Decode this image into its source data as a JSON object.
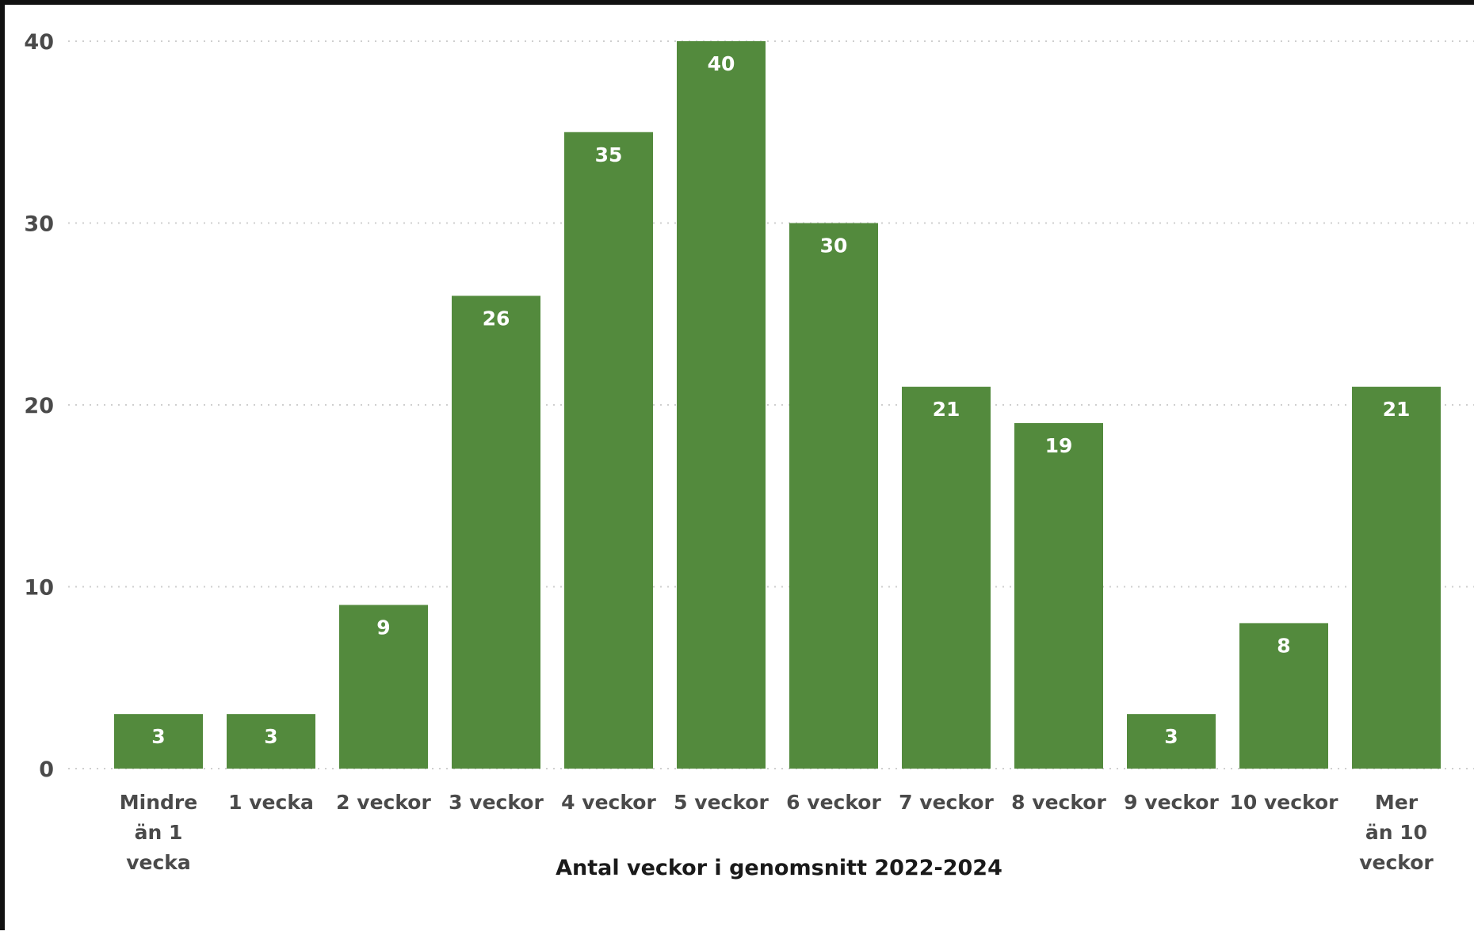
{
  "chart_data": {
    "type": "bar",
    "categories": [
      "Mindre än 1 vecka",
      "1 vecka",
      "2 veckor",
      "3 veckor",
      "4 veckor",
      "5 veckor",
      "6 veckor",
      "7 veckor",
      "8 veckor",
      "9 veckor",
      "10 veckor",
      "Mer än 10 veckor"
    ],
    "category_label_lines": [
      [
        "Mindre",
        "än 1",
        "vecka"
      ],
      [
        "1 vecka"
      ],
      [
        "2 veckor"
      ],
      [
        "3 veckor"
      ],
      [
        "4 veckor"
      ],
      [
        "5 veckor"
      ],
      [
        "6 veckor"
      ],
      [
        "7 veckor"
      ],
      [
        "8 veckor"
      ],
      [
        "9 veckor"
      ],
      [
        "10 veckor"
      ],
      [
        "Mer",
        "än 10",
        "veckor"
      ]
    ],
    "values": [
      3,
      3,
      9,
      26,
      35,
      40,
      30,
      21,
      19,
      3,
      8,
      21
    ],
    "data_labels": [
      "3",
      "3",
      "9",
      "26",
      "35",
      "40",
      "30",
      "21",
      "19",
      "3",
      "8",
      "21"
    ],
    "xlabel": "Antal veckor i genomsnitt 2022-2024",
    "ylabel": "",
    "ylim": [
      0,
      40
    ],
    "yticks": [
      0,
      10,
      20,
      30,
      40
    ],
    "ytick_labels": [
      "0",
      "10",
      "20",
      "30",
      "40"
    ],
    "grid": true,
    "bar_color": "#538a3d",
    "data_label_color": "#ffffff"
  }
}
